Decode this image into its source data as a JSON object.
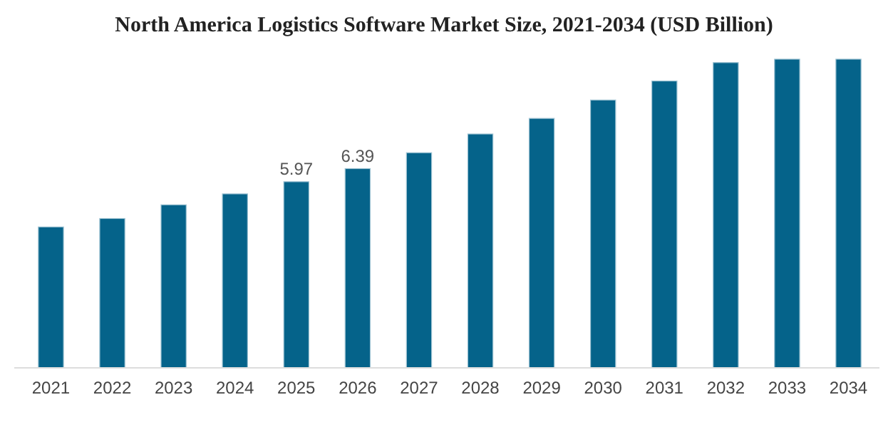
{
  "chart_data": {
    "type": "bar",
    "title": "North America Logistics Software Market Size, 2021-2034 (USD Billion)",
    "categories": [
      "2021",
      "2022",
      "2023",
      "2024",
      "2025",
      "2026",
      "2027",
      "2028",
      "2029",
      "2030",
      "2031",
      "2032",
      "2033",
      "2034"
    ],
    "values": [
      4.52,
      4.79,
      5.23,
      5.58,
      5.97,
      6.39,
      6.9,
      7.5,
      8.0,
      8.59,
      9.2,
      9.79,
      9.9,
      9.9
    ],
    "value_labels": [
      null,
      null,
      null,
      null,
      "5.97",
      "6.39",
      null,
      null,
      null,
      null,
      null,
      null,
      null,
      null
    ],
    "color": "#05638a"
  }
}
